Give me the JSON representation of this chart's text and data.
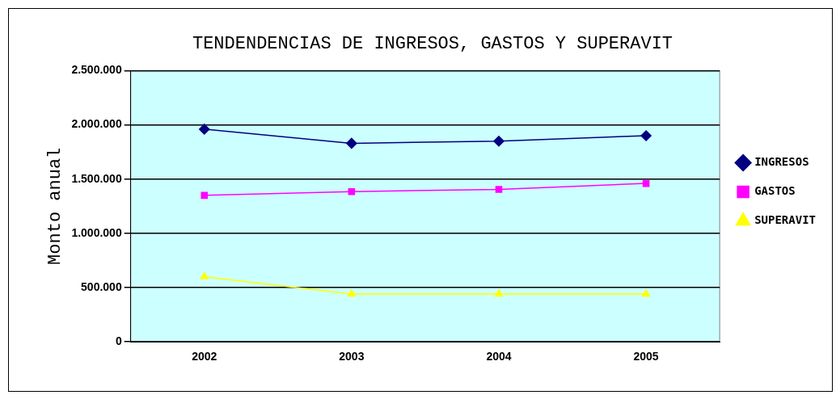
{
  "chart_data": {
    "type": "line",
    "title": "TENDENDENCIAS DE INGRESOS, GASTOS Y SUPERAVIT",
    "ylabel": "Monto anual",
    "categories": [
      "2002",
      "2003",
      "2004",
      "2005"
    ],
    "series": [
      {
        "name": "INGRESOS",
        "color": "#000080",
        "marker": "diamond",
        "values": [
          1960000,
          1830000,
          1850000,
          1900000
        ]
      },
      {
        "name": "GASTOS",
        "color": "#ff00ff",
        "marker": "square",
        "values": [
          1350000,
          1385000,
          1405000,
          1460000
        ]
      },
      {
        "name": "SUPERAVIT",
        "color": "#ffff00",
        "marker": "triangle",
        "values": [
          600000,
          440000,
          440000,
          440000
        ]
      }
    ],
    "ylim": [
      0,
      2500000
    ],
    "yticks": [
      0,
      {
        "value": 500000,
        "label": "500.000"
      },
      {
        "value": 1000000,
        "label": "1.000.000"
      },
      {
        "value": 1500000,
        "label": "1.500.000"
      },
      {
        "value": 2000000,
        "label": "2.000.000"
      },
      {
        "value": 2500000,
        "label": "2.500.000"
      }
    ],
    "grid": "y",
    "legend": "right"
  }
}
